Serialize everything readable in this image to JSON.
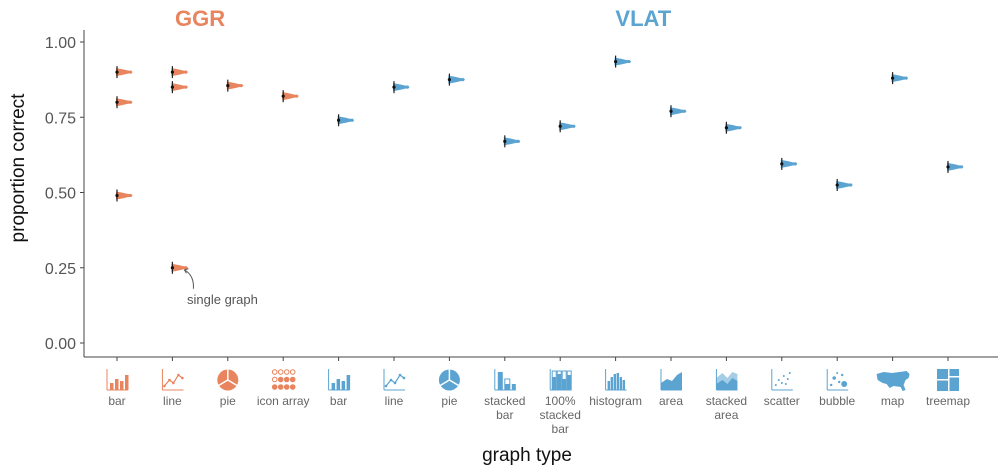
{
  "chart_data": {
    "type": "scatter",
    "xlabel": "graph type",
    "ylabel": "proportion correct",
    "ylim": [
      0,
      1.0
    ],
    "yticks": [
      "0.00",
      "0.25",
      "0.50",
      "0.75",
      "1.00"
    ],
    "grid": false,
    "colors": {
      "GGR": "#E8845E",
      "VLAT": "#5BA4D1"
    },
    "groups": [
      {
        "name": "GGR",
        "color": "#E8845E"
      },
      {
        "name": "VLAT",
        "color": "#5BA4D1"
      }
    ],
    "categories": [
      {
        "group": "GGR",
        "label": [
          "bar"
        ],
        "icon": "bar-chart-icon",
        "values": [
          0.9,
          0.8,
          0.49
        ]
      },
      {
        "group": "GGR",
        "label": [
          "line"
        ],
        "icon": "line-chart-icon",
        "values": [
          0.9,
          0.85,
          0.25
        ]
      },
      {
        "group": "GGR",
        "label": [
          "pie"
        ],
        "icon": "pie-chart-icon",
        "values": [
          0.855
        ]
      },
      {
        "group": "GGR",
        "label": [
          "icon array"
        ],
        "icon": "icon-array-icon",
        "values": [
          0.82
        ]
      },
      {
        "group": "VLAT",
        "label": [
          "bar"
        ],
        "icon": "bar-chart-icon",
        "values": [
          0.74
        ]
      },
      {
        "group": "VLAT",
        "label": [
          "line"
        ],
        "icon": "line-chart-icon",
        "values": [
          0.85
        ]
      },
      {
        "group": "VLAT",
        "label": [
          "pie"
        ],
        "icon": "pie-chart-icon",
        "values": [
          0.875
        ]
      },
      {
        "group": "VLAT",
        "label": [
          "stacked",
          "bar"
        ],
        "icon": "stacked-bar-icon",
        "values": [
          0.67
        ]
      },
      {
        "group": "VLAT",
        "label": [
          "100%",
          "stacked",
          "bar"
        ],
        "icon": "percent-stacked-bar-icon",
        "values": [
          0.72
        ]
      },
      {
        "group": "VLAT",
        "label": [
          "histogram"
        ],
        "icon": "histogram-icon",
        "values": [
          0.935
        ]
      },
      {
        "group": "VLAT",
        "label": [
          "area"
        ],
        "icon": "area-chart-icon",
        "values": [
          0.77
        ]
      },
      {
        "group": "VLAT",
        "label": [
          "stacked",
          "area"
        ],
        "icon": "stacked-area-icon",
        "values": [
          0.715
        ]
      },
      {
        "group": "VLAT",
        "label": [
          "scatter"
        ],
        "icon": "scatter-icon",
        "values": [
          0.595
        ]
      },
      {
        "group": "VLAT",
        "label": [
          "bubble"
        ],
        "icon": "bubble-icon",
        "values": [
          0.525
        ]
      },
      {
        "group": "VLAT",
        "label": [
          "map"
        ],
        "icon": "map-icon",
        "values": [
          0.88
        ]
      },
      {
        "group": "VLAT",
        "label": [
          "treemap"
        ],
        "icon": "treemap-icon",
        "values": [
          0.585
        ]
      }
    ],
    "annotation": {
      "text": "single graph",
      "category_index": 1,
      "value": 0.25
    }
  }
}
